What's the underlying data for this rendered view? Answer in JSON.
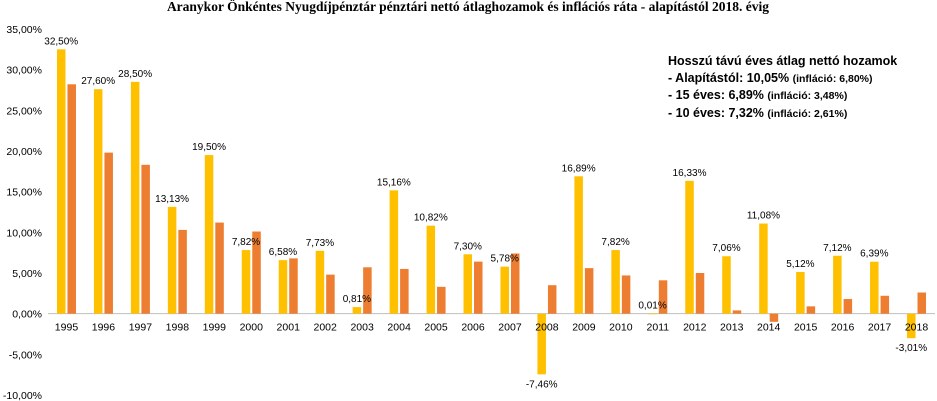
{
  "chart_data": {
    "type": "bar",
    "title": "Aranykor  Önkéntes Nyugdíjpénztár pénztári nettó átlaghozamok és inflációs ráta - alapítástól 2018. évig",
    "categories": [
      "1995",
      "1996",
      "1997",
      "1998",
      "1999",
      "2000",
      "2001",
      "2002",
      "2003",
      "2004",
      "2005",
      "2006",
      "2007",
      "2008",
      "2009",
      "2010",
      "2011",
      "2012",
      "2013",
      "2014",
      "2015",
      "2016",
      "2017",
      "2018"
    ],
    "series": [
      {
        "color": "#FFC000",
        "values": [
          32.5,
          27.6,
          28.5,
          13.13,
          19.5,
          7.82,
          6.58,
          7.73,
          0.81,
          15.16,
          10.82,
          7.3,
          5.78,
          -7.46,
          16.89,
          7.82,
          0.01,
          16.33,
          7.06,
          11.08,
          5.12,
          7.12,
          6.39,
          -3.01
        ],
        "labels": [
          "32,50%",
          "27,60%",
          "28,50%",
          "13,13%",
          "19,50%",
          "7,82%",
          "6,58%",
          "7,73%",
          "0,81%",
          "15,16%",
          "10,82%",
          "7,30%",
          "5,78%",
          "-7,46%",
          "16,89%",
          "7,82%",
          "0,01%",
          "16,33%",
          "7,06%",
          "11,08%",
          "5,12%",
          "7,12%",
          "6,39%",
          "-3,01%"
        ]
      },
      {
        "color": "#ED7D31",
        "values": [
          28.2,
          19.8,
          18.3,
          10.3,
          11.2,
          10.1,
          6.8,
          4.8,
          5.7,
          5.5,
          3.3,
          6.4,
          7.4,
          3.5,
          5.6,
          4.7,
          4.1,
          5.0,
          0.4,
          -1.0,
          0.9,
          1.8,
          2.2,
          2.6
        ]
      }
    ],
    "ylim": [
      -10,
      35
    ],
    "yticks": [
      -10,
      -5,
      0,
      5,
      10,
      15,
      20,
      25,
      30,
      35
    ],
    "ytick_labels": [
      "-10,00%",
      "-5,00%",
      "0,00%",
      "5,00%",
      "10,00%",
      "15,00%",
      "20,00%",
      "25,00%",
      "30,00%",
      "35,00%"
    ],
    "grid": false,
    "annotation": {
      "title": "Hosszú távú éves átlag nettó hozamok",
      "lines": [
        {
          "main": "- Alapítástól: 10,05% ",
          "small": "(infláció: 6,80%)"
        },
        {
          "main": "- 15 éves: 6,89% ",
          "small": "(infláció: 3,48%)"
        },
        {
          "main": "- 10 éves: 7,32% ",
          "small": "(infláció: 2,61%)"
        }
      ]
    }
  }
}
